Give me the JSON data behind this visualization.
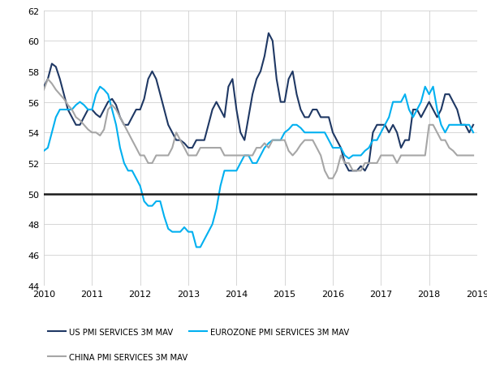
{
  "ylim": [
    44,
    62
  ],
  "yticks": [
    44,
    46,
    48,
    50,
    52,
    54,
    56,
    58,
    60,
    62
  ],
  "xlim": [
    2010.0,
    2019.0
  ],
  "xticks": [
    2010,
    2011,
    2012,
    2013,
    2014,
    2015,
    2016,
    2017,
    2018,
    2019
  ],
  "hline_y": 50,
  "hline_color": "#1a1a1a",
  "bg_color": "#ffffff",
  "grid_color": "#d0d0d0",
  "us_color": "#1f3864",
  "ez_color": "#00b0f0",
  "cn_color": "#a6a6a6",
  "us_label": "US PMI SERVICES 3M MAV",
  "ez_label": "EUROZONE PMI SERVICES 3M MAV",
  "cn_label": "CHINA PMI SERVICES 3M MAV",
  "us": [
    [
      2010.0,
      57.0
    ],
    [
      2010.083,
      57.5
    ],
    [
      2010.167,
      58.5
    ],
    [
      2010.25,
      58.3
    ],
    [
      2010.333,
      57.5
    ],
    [
      2010.417,
      56.5
    ],
    [
      2010.5,
      55.5
    ],
    [
      2010.583,
      55.0
    ],
    [
      2010.667,
      54.5
    ],
    [
      2010.75,
      54.5
    ],
    [
      2010.833,
      55.0
    ],
    [
      2010.917,
      55.5
    ],
    [
      2011.0,
      55.5
    ],
    [
      2011.083,
      55.2
    ],
    [
      2011.167,
      55.0
    ],
    [
      2011.25,
      55.5
    ],
    [
      2011.333,
      56.0
    ],
    [
      2011.417,
      56.2
    ],
    [
      2011.5,
      55.8
    ],
    [
      2011.583,
      55.0
    ],
    [
      2011.667,
      54.5
    ],
    [
      2011.75,
      54.5
    ],
    [
      2011.833,
      55.0
    ],
    [
      2011.917,
      55.5
    ],
    [
      2012.0,
      55.5
    ],
    [
      2012.083,
      56.2
    ],
    [
      2012.167,
      57.5
    ],
    [
      2012.25,
      58.0
    ],
    [
      2012.333,
      57.5
    ],
    [
      2012.417,
      56.5
    ],
    [
      2012.5,
      55.5
    ],
    [
      2012.583,
      54.5
    ],
    [
      2012.667,
      54.0
    ],
    [
      2012.75,
      53.5
    ],
    [
      2012.833,
      53.5
    ],
    [
      2012.917,
      53.3
    ],
    [
      2013.0,
      53.0
    ],
    [
      2013.083,
      53.0
    ],
    [
      2013.167,
      53.5
    ],
    [
      2013.25,
      53.5
    ],
    [
      2013.333,
      53.5
    ],
    [
      2013.417,
      54.5
    ],
    [
      2013.5,
      55.5
    ],
    [
      2013.583,
      56.0
    ],
    [
      2013.667,
      55.5
    ],
    [
      2013.75,
      55.0
    ],
    [
      2013.833,
      57.0
    ],
    [
      2013.917,
      57.5
    ],
    [
      2014.0,
      55.5
    ],
    [
      2014.083,
      54.0
    ],
    [
      2014.167,
      53.5
    ],
    [
      2014.25,
      55.0
    ],
    [
      2014.333,
      56.5
    ],
    [
      2014.417,
      57.5
    ],
    [
      2014.5,
      58.0
    ],
    [
      2014.583,
      59.0
    ],
    [
      2014.667,
      60.5
    ],
    [
      2014.75,
      60.0
    ],
    [
      2014.833,
      57.5
    ],
    [
      2014.917,
      56.0
    ],
    [
      2015.0,
      56.0
    ],
    [
      2015.083,
      57.5
    ],
    [
      2015.167,
      58.0
    ],
    [
      2015.25,
      56.5
    ],
    [
      2015.333,
      55.5
    ],
    [
      2015.417,
      55.0
    ],
    [
      2015.5,
      55.0
    ],
    [
      2015.583,
      55.5
    ],
    [
      2015.667,
      55.5
    ],
    [
      2015.75,
      55.0
    ],
    [
      2015.833,
      55.0
    ],
    [
      2015.917,
      55.0
    ],
    [
      2016.0,
      54.0
    ],
    [
      2016.083,
      53.5
    ],
    [
      2016.167,
      53.0
    ],
    [
      2016.25,
      52.0
    ],
    [
      2016.333,
      51.5
    ],
    [
      2016.417,
      51.5
    ],
    [
      2016.5,
      51.5
    ],
    [
      2016.583,
      51.8
    ],
    [
      2016.667,
      51.5
    ],
    [
      2016.75,
      52.0
    ],
    [
      2016.833,
      54.0
    ],
    [
      2016.917,
      54.5
    ],
    [
      2017.0,
      54.5
    ],
    [
      2017.083,
      54.5
    ],
    [
      2017.167,
      54.0
    ],
    [
      2017.25,
      54.5
    ],
    [
      2017.333,
      54.0
    ],
    [
      2017.417,
      53.0
    ],
    [
      2017.5,
      53.5
    ],
    [
      2017.583,
      53.5
    ],
    [
      2017.667,
      55.5
    ],
    [
      2017.75,
      55.5
    ],
    [
      2017.833,
      55.0
    ],
    [
      2017.917,
      55.5
    ],
    [
      2018.0,
      56.0
    ],
    [
      2018.083,
      55.5
    ],
    [
      2018.167,
      55.0
    ],
    [
      2018.25,
      55.5
    ],
    [
      2018.333,
      56.5
    ],
    [
      2018.417,
      56.5
    ],
    [
      2018.5,
      56.0
    ],
    [
      2018.583,
      55.5
    ],
    [
      2018.667,
      54.5
    ],
    [
      2018.75,
      54.5
    ],
    [
      2018.833,
      54.0
    ],
    [
      2018.917,
      54.5
    ]
  ],
  "ez": [
    [
      2010.0,
      52.8
    ],
    [
      2010.083,
      53.0
    ],
    [
      2010.167,
      54.0
    ],
    [
      2010.25,
      55.0
    ],
    [
      2010.333,
      55.5
    ],
    [
      2010.417,
      55.5
    ],
    [
      2010.5,
      55.5
    ],
    [
      2010.583,
      55.5
    ],
    [
      2010.667,
      55.8
    ],
    [
      2010.75,
      56.0
    ],
    [
      2010.833,
      55.8
    ],
    [
      2010.917,
      55.5
    ],
    [
      2011.0,
      55.5
    ],
    [
      2011.083,
      56.5
    ],
    [
      2011.167,
      57.0
    ],
    [
      2011.25,
      56.8
    ],
    [
      2011.333,
      56.5
    ],
    [
      2011.417,
      55.5
    ],
    [
      2011.5,
      54.5
    ],
    [
      2011.583,
      53.0
    ],
    [
      2011.667,
      52.0
    ],
    [
      2011.75,
      51.5
    ],
    [
      2011.833,
      51.5
    ],
    [
      2011.917,
      51.0
    ],
    [
      2012.0,
      50.5
    ],
    [
      2012.083,
      49.5
    ],
    [
      2012.167,
      49.2
    ],
    [
      2012.25,
      49.2
    ],
    [
      2012.333,
      49.5
    ],
    [
      2012.417,
      49.5
    ],
    [
      2012.5,
      48.5
    ],
    [
      2012.583,
      47.7
    ],
    [
      2012.667,
      47.5
    ],
    [
      2012.75,
      47.5
    ],
    [
      2012.833,
      47.5
    ],
    [
      2012.917,
      47.8
    ],
    [
      2013.0,
      47.5
    ],
    [
      2013.083,
      47.5
    ],
    [
      2013.167,
      46.5
    ],
    [
      2013.25,
      46.5
    ],
    [
      2013.333,
      47.0
    ],
    [
      2013.417,
      47.5
    ],
    [
      2013.5,
      48.0
    ],
    [
      2013.583,
      49.0
    ],
    [
      2013.667,
      50.5
    ],
    [
      2013.75,
      51.5
    ],
    [
      2013.833,
      51.5
    ],
    [
      2013.917,
      51.5
    ],
    [
      2014.0,
      51.5
    ],
    [
      2014.083,
      52.0
    ],
    [
      2014.167,
      52.5
    ],
    [
      2014.25,
      52.5
    ],
    [
      2014.333,
      52.0
    ],
    [
      2014.417,
      52.0
    ],
    [
      2014.5,
      52.5
    ],
    [
      2014.583,
      53.0
    ],
    [
      2014.667,
      53.3
    ],
    [
      2014.75,
      53.5
    ],
    [
      2014.833,
      53.5
    ],
    [
      2014.917,
      53.5
    ],
    [
      2015.0,
      54.0
    ],
    [
      2015.083,
      54.2
    ],
    [
      2015.167,
      54.5
    ],
    [
      2015.25,
      54.5
    ],
    [
      2015.333,
      54.3
    ],
    [
      2015.417,
      54.0
    ],
    [
      2015.5,
      54.0
    ],
    [
      2015.583,
      54.0
    ],
    [
      2015.667,
      54.0
    ],
    [
      2015.75,
      54.0
    ],
    [
      2015.833,
      54.0
    ],
    [
      2015.917,
      53.5
    ],
    [
      2016.0,
      53.0
    ],
    [
      2016.083,
      53.0
    ],
    [
      2016.167,
      53.0
    ],
    [
      2016.25,
      52.5
    ],
    [
      2016.333,
      52.3
    ],
    [
      2016.417,
      52.5
    ],
    [
      2016.5,
      52.5
    ],
    [
      2016.583,
      52.5
    ],
    [
      2016.667,
      52.8
    ],
    [
      2016.75,
      53.0
    ],
    [
      2016.833,
      53.5
    ],
    [
      2016.917,
      53.5
    ],
    [
      2017.0,
      54.0
    ],
    [
      2017.083,
      54.5
    ],
    [
      2017.167,
      55.0
    ],
    [
      2017.25,
      56.0
    ],
    [
      2017.333,
      56.0
    ],
    [
      2017.417,
      56.0
    ],
    [
      2017.5,
      56.5
    ],
    [
      2017.583,
      55.5
    ],
    [
      2017.667,
      55.0
    ],
    [
      2017.75,
      55.5
    ],
    [
      2017.833,
      56.0
    ],
    [
      2017.917,
      57.0
    ],
    [
      2018.0,
      56.5
    ],
    [
      2018.083,
      57.0
    ],
    [
      2018.167,
      55.5
    ],
    [
      2018.25,
      54.5
    ],
    [
      2018.333,
      54.0
    ],
    [
      2018.417,
      54.5
    ],
    [
      2018.5,
      54.5
    ],
    [
      2018.583,
      54.5
    ],
    [
      2018.667,
      54.5
    ],
    [
      2018.75,
      54.5
    ],
    [
      2018.833,
      54.5
    ],
    [
      2018.917,
      54.0
    ]
  ],
  "cn": [
    [
      2010.0,
      56.8
    ],
    [
      2010.083,
      57.5
    ],
    [
      2010.167,
      57.2
    ],
    [
      2010.25,
      56.8
    ],
    [
      2010.333,
      56.5
    ],
    [
      2010.417,
      56.2
    ],
    [
      2010.5,
      55.8
    ],
    [
      2010.583,
      55.5
    ],
    [
      2010.667,
      55.0
    ],
    [
      2010.75,
      54.8
    ],
    [
      2010.833,
      54.5
    ],
    [
      2010.917,
      54.2
    ],
    [
      2011.0,
      54.0
    ],
    [
      2011.083,
      54.0
    ],
    [
      2011.167,
      53.8
    ],
    [
      2011.25,
      54.2
    ],
    [
      2011.333,
      55.5
    ],
    [
      2011.417,
      55.8
    ],
    [
      2011.5,
      55.5
    ],
    [
      2011.583,
      55.0
    ],
    [
      2011.667,
      54.5
    ],
    [
      2011.75,
      54.0
    ],
    [
      2011.833,
      53.5
    ],
    [
      2011.917,
      53.0
    ],
    [
      2012.0,
      52.5
    ],
    [
      2012.083,
      52.5
    ],
    [
      2012.167,
      52.0
    ],
    [
      2012.25,
      52.0
    ],
    [
      2012.333,
      52.5
    ],
    [
      2012.417,
      52.5
    ],
    [
      2012.5,
      52.5
    ],
    [
      2012.583,
      52.5
    ],
    [
      2012.667,
      53.0
    ],
    [
      2012.75,
      54.0
    ],
    [
      2012.833,
      53.5
    ],
    [
      2012.917,
      53.0
    ],
    [
      2013.0,
      52.5
    ],
    [
      2013.083,
      52.5
    ],
    [
      2013.167,
      52.5
    ],
    [
      2013.25,
      53.0
    ],
    [
      2013.333,
      53.0
    ],
    [
      2013.417,
      53.0
    ],
    [
      2013.5,
      53.0
    ],
    [
      2013.583,
      53.0
    ],
    [
      2013.667,
      53.0
    ],
    [
      2013.75,
      52.5
    ],
    [
      2013.833,
      52.5
    ],
    [
      2013.917,
      52.5
    ],
    [
      2014.0,
      52.5
    ],
    [
      2014.083,
      52.5
    ],
    [
      2014.167,
      52.5
    ],
    [
      2014.25,
      52.5
    ],
    [
      2014.333,
      52.5
    ],
    [
      2014.417,
      53.0
    ],
    [
      2014.5,
      53.0
    ],
    [
      2014.583,
      53.3
    ],
    [
      2014.667,
      53.0
    ],
    [
      2014.75,
      53.5
    ],
    [
      2014.833,
      53.5
    ],
    [
      2014.917,
      53.5
    ],
    [
      2015.0,
      53.5
    ],
    [
      2015.083,
      52.8
    ],
    [
      2015.167,
      52.5
    ],
    [
      2015.25,
      52.8
    ],
    [
      2015.333,
      53.2
    ],
    [
      2015.417,
      53.5
    ],
    [
      2015.5,
      53.5
    ],
    [
      2015.583,
      53.5
    ],
    [
      2015.667,
      53.0
    ],
    [
      2015.75,
      52.5
    ],
    [
      2015.833,
      51.5
    ],
    [
      2015.917,
      51.0
    ],
    [
      2016.0,
      51.0
    ],
    [
      2016.083,
      51.5
    ],
    [
      2016.167,
      52.5
    ],
    [
      2016.25,
      52.0
    ],
    [
      2016.333,
      52.0
    ],
    [
      2016.417,
      51.5
    ],
    [
      2016.5,
      51.5
    ],
    [
      2016.583,
      51.5
    ],
    [
      2016.667,
      52.0
    ],
    [
      2016.75,
      52.0
    ],
    [
      2016.833,
      52.0
    ],
    [
      2016.917,
      52.0
    ],
    [
      2017.0,
      52.5
    ],
    [
      2017.083,
      52.5
    ],
    [
      2017.167,
      52.5
    ],
    [
      2017.25,
      52.5
    ],
    [
      2017.333,
      52.0
    ],
    [
      2017.417,
      52.5
    ],
    [
      2017.5,
      52.5
    ],
    [
      2017.583,
      52.5
    ],
    [
      2017.667,
      52.5
    ],
    [
      2017.75,
      52.5
    ],
    [
      2017.833,
      52.5
    ],
    [
      2017.917,
      52.5
    ],
    [
      2018.0,
      54.5
    ],
    [
      2018.083,
      54.5
    ],
    [
      2018.167,
      54.0
    ],
    [
      2018.25,
      53.5
    ],
    [
      2018.333,
      53.5
    ],
    [
      2018.417,
      53.0
    ],
    [
      2018.5,
      52.8
    ],
    [
      2018.583,
      52.5
    ],
    [
      2018.667,
      52.5
    ],
    [
      2018.75,
      52.5
    ],
    [
      2018.833,
      52.5
    ],
    [
      2018.917,
      52.5
    ]
  ]
}
